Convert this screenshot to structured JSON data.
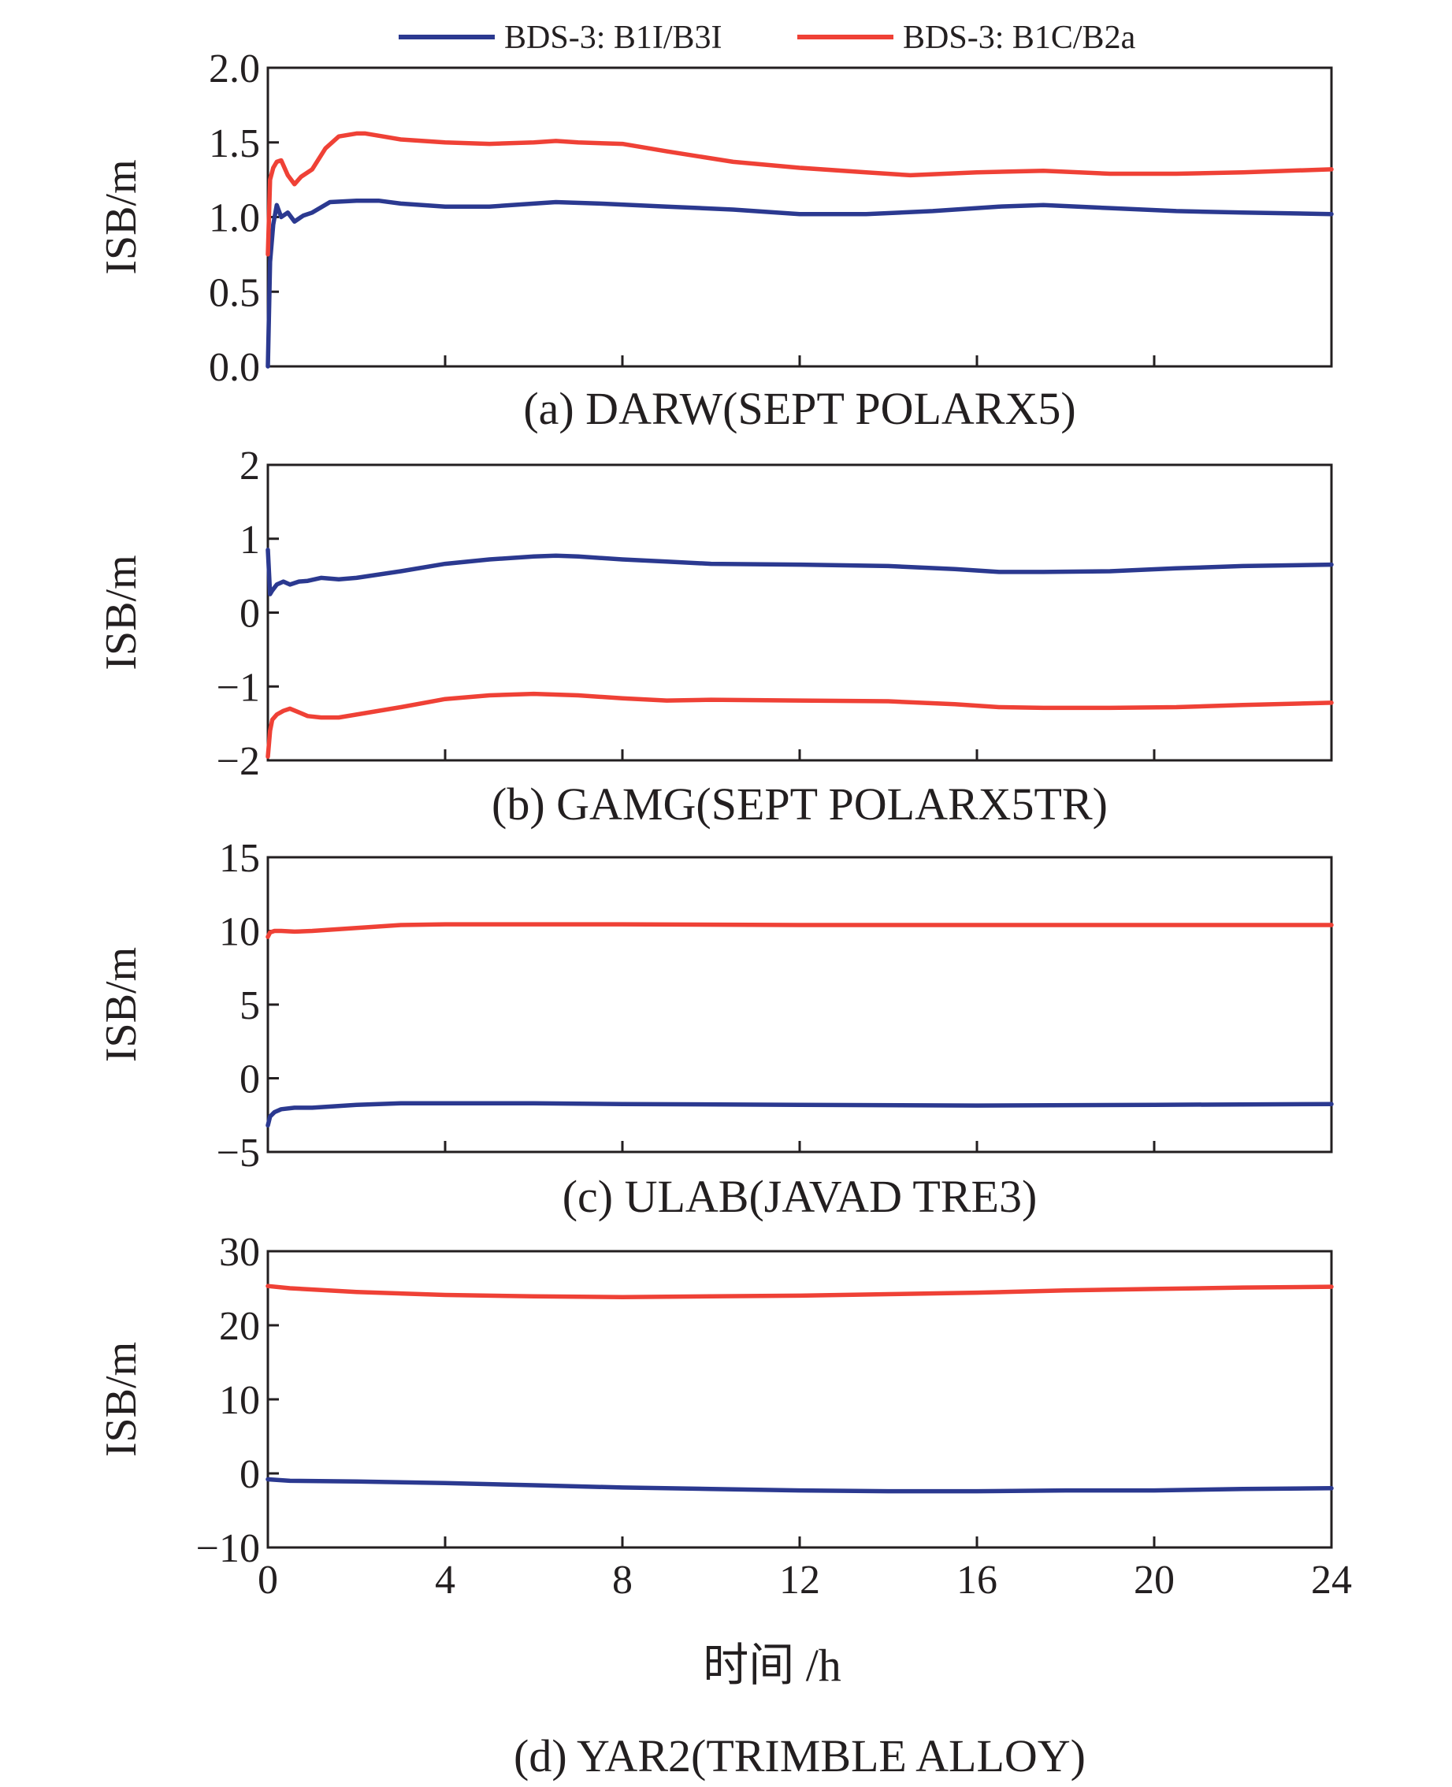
{
  "colors": {
    "blue": "#2b3990",
    "red": "#ef4136"
  },
  "legend": [
    {
      "key": "blue",
      "label": "BDS-3: B1I/B3I"
    },
    {
      "key": "red",
      "label": "BDS-3: B1C/B2a"
    }
  ],
  "xaxis": {
    "label": "时间 /h",
    "range": [
      0,
      24
    ],
    "ticks": [
      0,
      4,
      8,
      12,
      16,
      20,
      24
    ]
  },
  "chart_data": [
    {
      "type": "line",
      "title": "(a) DARW(SEPT POLARX5)",
      "ylabel": "ISB/m",
      "ylim": [
        0.0,
        2.0
      ],
      "yticks": [
        0.0,
        0.5,
        1.0,
        1.5,
        2.0
      ],
      "ytick_labels": [
        "0.0",
        "0.5",
        "1.0",
        "1.5",
        "2.0"
      ],
      "series": [
        {
          "name": "BDS-3: B1I/B3I",
          "color": "blue",
          "x": [
            0,
            0.05,
            0.12,
            0.2,
            0.3,
            0.45,
            0.6,
            0.8,
            1.0,
            1.4,
            2.0,
            2.5,
            3.0,
            4.0,
            5.0,
            6.0,
            6.5,
            7.5,
            9.0,
            10.5,
            12.0,
            13.5,
            15.0,
            16.5,
            17.5,
            19.0,
            20.5,
            22.0,
            24.0
          ],
          "y": [
            0.0,
            0.7,
            0.95,
            1.08,
            1.0,
            1.03,
            0.97,
            1.01,
            1.03,
            1.1,
            1.11,
            1.11,
            1.09,
            1.07,
            1.07,
            1.09,
            1.1,
            1.09,
            1.07,
            1.05,
            1.02,
            1.02,
            1.04,
            1.07,
            1.08,
            1.06,
            1.04,
            1.03,
            1.02
          ]
        },
        {
          "name": "BDS-3: B1C/B2a",
          "color": "red",
          "x": [
            0,
            0.05,
            0.12,
            0.2,
            0.3,
            0.45,
            0.6,
            0.75,
            1.0,
            1.3,
            1.6,
            2.0,
            2.2,
            2.6,
            3.0,
            4.0,
            5.0,
            6.0,
            6.5,
            7.0,
            8.0,
            9.0,
            10.5,
            12.0,
            13.5,
            14.5,
            16.0,
            17.5,
            19.0,
            20.5,
            22.0,
            24.0
          ],
          "y": [
            0.75,
            1.25,
            1.33,
            1.37,
            1.38,
            1.28,
            1.22,
            1.27,
            1.32,
            1.46,
            1.54,
            1.56,
            1.56,
            1.54,
            1.52,
            1.5,
            1.49,
            1.5,
            1.51,
            1.5,
            1.49,
            1.44,
            1.37,
            1.33,
            1.3,
            1.28,
            1.3,
            1.31,
            1.29,
            1.29,
            1.3,
            1.32
          ]
        }
      ]
    },
    {
      "type": "line",
      "title": "(b) GAMG(SEPT POLARX5TR)",
      "ylabel": "ISB/m",
      "ylim": [
        -2,
        2
      ],
      "yticks": [
        -2,
        -1,
        0,
        1,
        2
      ],
      "ytick_labels": [
        "−2",
        "−1",
        "0",
        "1",
        "2"
      ],
      "series": [
        {
          "name": "BDS-3: B1I/B3I",
          "color": "blue",
          "x": [
            0,
            0.05,
            0.1,
            0.2,
            0.35,
            0.5,
            0.7,
            0.9,
            1.2,
            1.6,
            2.0,
            3.0,
            4.0,
            5.0,
            6.0,
            6.5,
            7.0,
            8.0,
            9.0,
            10.0,
            12.0,
            14.0,
            15.5,
            16.5,
            17.5,
            19.0,
            20.5,
            22.0,
            24.0
          ],
          "y": [
            0.85,
            0.25,
            0.3,
            0.38,
            0.42,
            0.38,
            0.42,
            0.43,
            0.47,
            0.45,
            0.47,
            0.56,
            0.66,
            0.72,
            0.76,
            0.77,
            0.76,
            0.72,
            0.69,
            0.66,
            0.65,
            0.63,
            0.59,
            0.55,
            0.55,
            0.56,
            0.6,
            0.63,
            0.65
          ]
        },
        {
          "name": "BDS-3: B1C/B2a",
          "color": "red",
          "x": [
            0,
            0.05,
            0.1,
            0.2,
            0.35,
            0.5,
            0.7,
            0.9,
            1.2,
            1.6,
            2.0,
            3.0,
            4.0,
            5.0,
            6.0,
            7.0,
            8.0,
            9.0,
            10.0,
            12.0,
            14.0,
            15.5,
            16.5,
            17.5,
            19.0,
            20.5,
            22.0,
            24.0
          ],
          "y": [
            -1.95,
            -1.6,
            -1.45,
            -1.38,
            -1.33,
            -1.3,
            -1.35,
            -1.4,
            -1.42,
            -1.42,
            -1.38,
            -1.28,
            -1.17,
            -1.12,
            -1.1,
            -1.12,
            -1.16,
            -1.19,
            -1.18,
            -1.19,
            -1.2,
            -1.24,
            -1.28,
            -1.29,
            -1.29,
            -1.28,
            -1.25,
            -1.22
          ]
        }
      ]
    },
    {
      "type": "line",
      "title": "(c) ULAB(JAVAD TRE3)",
      "ylabel": "ISB/m",
      "ylim": [
        -5,
        15
      ],
      "yticks": [
        -5,
        0,
        5,
        10,
        15
      ],
      "ytick_labels": [
        "−5",
        "0",
        "5",
        "10",
        "15"
      ],
      "series": [
        {
          "name": "BDS-3: B1I/B3I",
          "color": "blue",
          "x": [
            0,
            0.05,
            0.15,
            0.3,
            0.6,
            1.0,
            2.0,
            3.0,
            4.0,
            6.0,
            8.0,
            12.0,
            16.0,
            20.0,
            24.0
          ],
          "y": [
            -3.2,
            -2.6,
            -2.3,
            -2.1,
            -2.0,
            -2.0,
            -1.8,
            -1.7,
            -1.7,
            -1.7,
            -1.75,
            -1.8,
            -1.85,
            -1.8,
            -1.75
          ]
        },
        {
          "name": "BDS-3: B1C/B2a",
          "color": "red",
          "x": [
            0,
            0.05,
            0.15,
            0.3,
            0.6,
            1.0,
            2.0,
            3.0,
            4.0,
            6.0,
            8.0,
            12.0,
            16.0,
            20.0,
            24.0
          ],
          "y": [
            9.6,
            9.9,
            10.0,
            10.0,
            9.95,
            10.0,
            10.2,
            10.4,
            10.45,
            10.45,
            10.45,
            10.4,
            10.4,
            10.4,
            10.4
          ]
        }
      ]
    },
    {
      "type": "line",
      "title": "(d) YAR2(TRIMBLE ALLOY)",
      "ylabel": "ISB/m",
      "ylim": [
        -10,
        30
      ],
      "yticks": [
        -10,
        0,
        10,
        20,
        30
      ],
      "ytick_labels": [
        "−10",
        "0",
        "10",
        "20",
        "30"
      ],
      "series": [
        {
          "name": "BDS-3: B1I/B3I",
          "color": "blue",
          "x": [
            0,
            0.5,
            2.0,
            4.0,
            6.0,
            8.0,
            10.0,
            12.0,
            14.0,
            16.0,
            18.0,
            20.0,
            22.0,
            24.0
          ],
          "y": [
            -0.8,
            -1.0,
            -1.1,
            -1.3,
            -1.6,
            -1.9,
            -2.1,
            -2.3,
            -2.4,
            -2.4,
            -2.3,
            -2.3,
            -2.1,
            -2.0
          ]
        },
        {
          "name": "BDS-3: B1C/B2a",
          "color": "red",
          "x": [
            0,
            0.5,
            2.0,
            4.0,
            6.0,
            8.0,
            10.0,
            12.0,
            14.0,
            16.0,
            18.0,
            20.0,
            22.0,
            24.0
          ],
          "y": [
            25.3,
            25.0,
            24.5,
            24.1,
            23.9,
            23.8,
            23.9,
            24.0,
            24.2,
            24.4,
            24.7,
            24.9,
            25.1,
            25.2
          ]
        }
      ]
    }
  ]
}
